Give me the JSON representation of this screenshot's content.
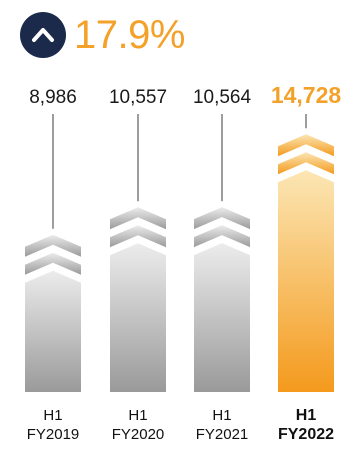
{
  "header": {
    "growth_text": "17.9%",
    "icon": "up-chevron-circle-icon"
  },
  "colors": {
    "badge": "#1b2a4a",
    "accent": "#f4a12a",
    "bar_gray_top": "#ececec",
    "bar_gray_bottom": "#9a9a9a",
    "bar_orange_top": "#fbe6b4",
    "bar_orange_bottom": "#f49a1d",
    "stem": "#9d9d9d"
  },
  "chart_data": {
    "type": "bar",
    "categories": [
      [
        "H1",
        "FY2019"
      ],
      [
        "H1",
        "FY2020"
      ],
      [
        "H1",
        "FY2021"
      ],
      [
        "H1",
        "FY2022"
      ]
    ],
    "values": [
      8986,
      10557,
      10564,
      14728
    ],
    "value_labels": [
      "8,986",
      "10,557",
      "10,564",
      "14,728"
    ],
    "highlight_index": 3,
    "title": "",
    "xlabel": "",
    "ylabel": "",
    "grid": false,
    "legend": "none",
    "ylim": [
      0,
      16000
    ]
  }
}
